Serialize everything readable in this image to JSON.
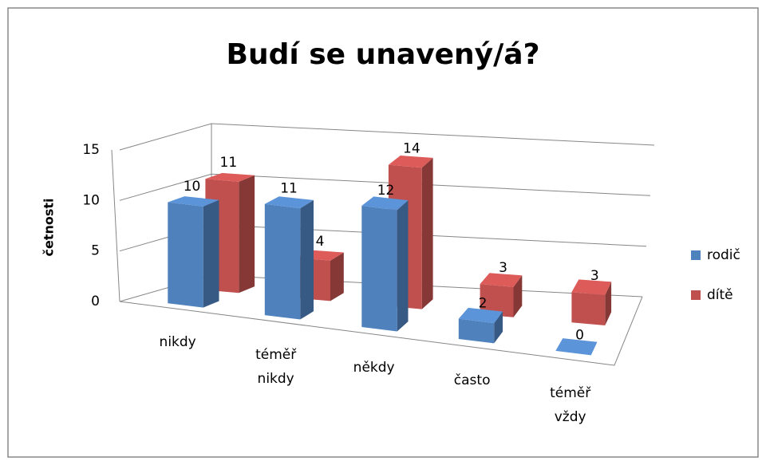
{
  "chart_data": {
    "type": "bar3d",
    "title": "Budí se unavený/á?",
    "y_label": "četnosti",
    "categories": [
      "nikdy",
      "téměř nikdy",
      "někdy",
      "často",
      "téměř vždy"
    ],
    "series": [
      {
        "name": "rodič",
        "color": "#4f81bd",
        "values": [
          10,
          11,
          12,
          2,
          0
        ]
      },
      {
        "name": "dítě",
        "color": "#c0504d",
        "values": [
          11,
          4,
          14,
          3,
          3
        ]
      }
    ],
    "ylim": [
      0,
      15
    ],
    "yticks": [
      0,
      5,
      10,
      15
    ],
    "grid": true,
    "legend": "right"
  }
}
